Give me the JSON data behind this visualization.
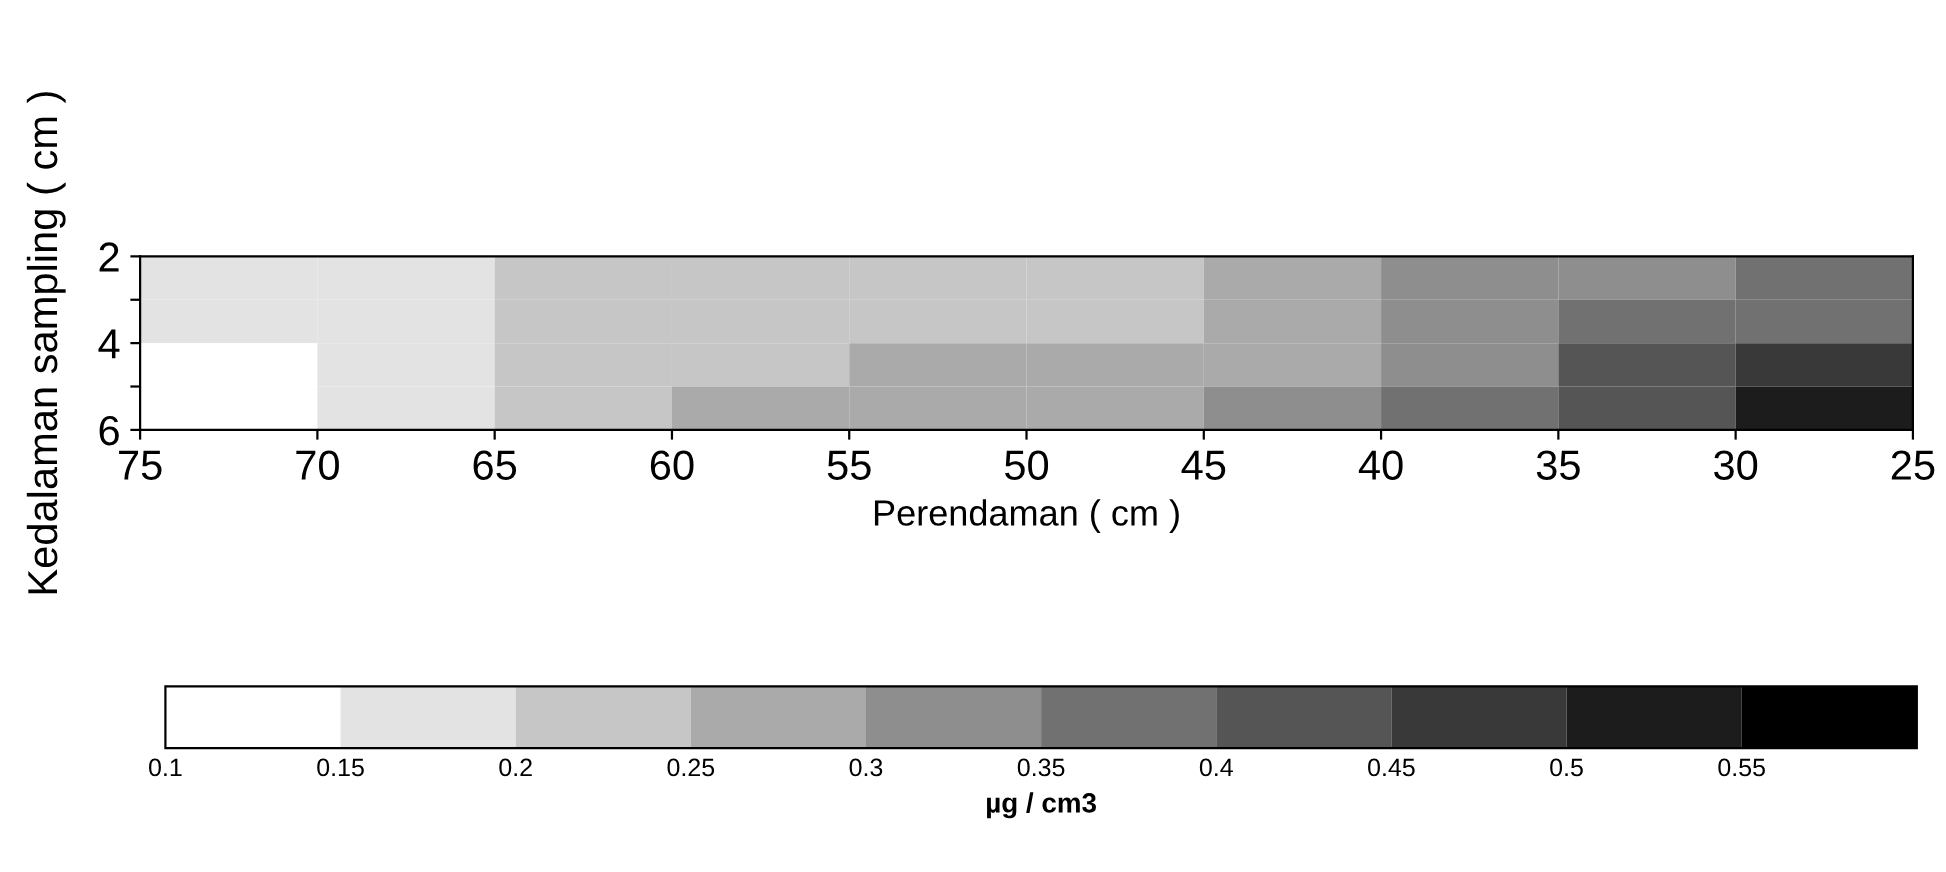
{
  "chart_data": {
    "type": "heatmap",
    "xlabel": "Perendaman ( cm )",
    "ylabel": "Kedalaman sampling ( cm )",
    "clabel": "µg / cm3",
    "x": [
      72.5,
      67.5,
      62.5,
      57.5,
      52.5,
      47.5,
      42.5,
      37.5,
      32.5,
      27.5
    ],
    "y": [
      2.5,
      3.5,
      4.5,
      5.5
    ],
    "cells": [
      [
        0.18,
        0.19,
        0.21,
        0.22,
        0.23,
        0.23,
        0.26,
        0.31,
        0.34,
        0.36
      ],
      [
        0.16,
        0.18,
        0.2,
        0.22,
        0.23,
        0.24,
        0.28,
        0.33,
        0.37,
        0.39
      ],
      [
        0.14,
        0.18,
        0.21,
        0.23,
        0.25,
        0.26,
        0.29,
        0.35,
        0.41,
        0.46
      ],
      [
        0.13,
        0.18,
        0.22,
        0.25,
        0.27,
        0.29,
        0.32,
        0.37,
        0.43,
        0.52
      ]
    ],
    "xlim": [
      75,
      25
    ],
    "xticks": [
      75,
      70,
      65,
      60,
      55,
      50,
      45,
      40,
      35,
      30,
      25
    ],
    "ylim": [
      6,
      2
    ],
    "yticks": [
      2,
      {
        "value": 3,
        "label": null
      },
      4,
      {
        "value": 5,
        "label": null
      },
      6
    ],
    "clim": [
      0.1,
      0.6
    ],
    "cticks": [
      0.1,
      0.15,
      0.2,
      0.25,
      0.3,
      0.35,
      0.4,
      0.45,
      0.5,
      0.55
    ]
  }
}
